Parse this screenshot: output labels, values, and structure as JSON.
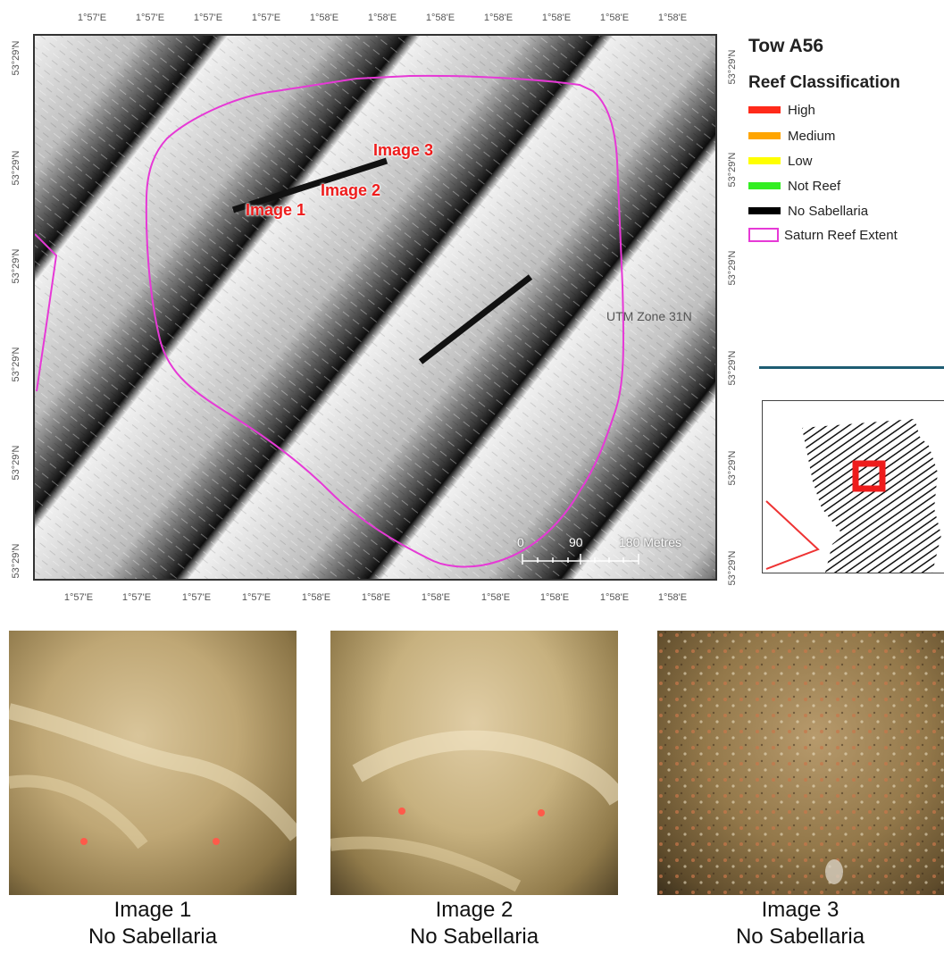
{
  "map": {
    "top_lon_labels": [
      "1°57'E",
      "1°57'E",
      "1°57'E",
      "1°57'E",
      "1°58'E",
      "1°58'E",
      "1°58'E",
      "1°58'E",
      "1°58'E",
      "1°58'E",
      "1°58'E"
    ],
    "bottom_lon_labels": [
      "1°57'E",
      "1°57'E",
      "1°57'E",
      "1°57'E",
      "1°58'E",
      "1°58'E",
      "1°58'E",
      "1°58'E",
      "1°58'E",
      "1°58'E",
      "1°58'E"
    ],
    "left_lat_labels": [
      "53°29'N",
      "53°29'N",
      "53°29'N",
      "53°29'N",
      "53°29'N",
      "53°29'N"
    ],
    "right_lat_labels": [
      "53°29'N",
      "53°29'N",
      "53°29'N",
      "53°29'N",
      "53°29'N",
      "53°29'N"
    ],
    "image_labels": [
      "Image 3",
      "Image 2",
      "Image 1"
    ],
    "utm_label": "UTM Zone 31N",
    "scale_bar": {
      "ticks": [
        "0",
        "90",
        "180 Metres"
      ]
    },
    "colors": {
      "reef_extent": "#e639d6",
      "track": "#111111",
      "image_label": "#ee1c1c"
    }
  },
  "legend": {
    "title": "Tow A56",
    "subtitle": "Reef Classification",
    "items": [
      {
        "label": "High",
        "color": "#ff2a1a"
      },
      {
        "label": "Medium",
        "color": "#ffa500"
      },
      {
        "label": "Low",
        "color": "#ffff00"
      },
      {
        "label": "Not Reef",
        "color": "#33ee22"
      },
      {
        "label": "No Sabellaria",
        "color": "#000000"
      },
      {
        "label": "Saturn Reef Extent",
        "color": "#e639d6"
      }
    ]
  },
  "photos": [
    {
      "title": "Image 1",
      "classification": "No Sabellaria"
    },
    {
      "title": "Image 2",
      "classification": "No Sabellaria"
    },
    {
      "title": "Image 3",
      "classification": "No Sabellaria"
    }
  ]
}
